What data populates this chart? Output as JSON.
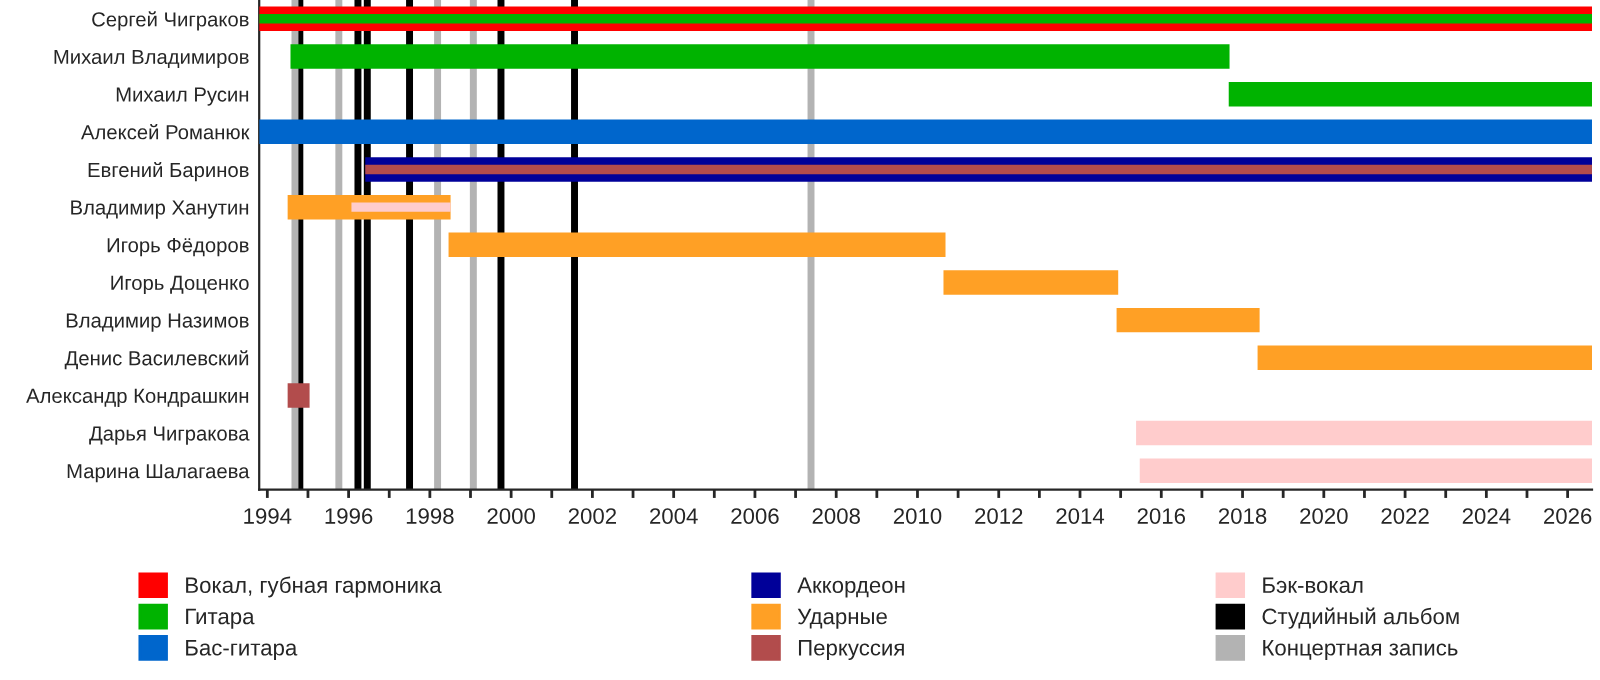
{
  "chart_data": {
    "type": "bar",
    "orientation": "horizontal",
    "categories": [
      "Сергей Чиграков",
      "Михаил Владимиров",
      "Михаил Русин",
      "Алексей Романюк",
      "Евгений Баринов",
      "Владимир Ханутин",
      "Игорь Фёдоров",
      "Игорь Доценко",
      "Владимир Назимов",
      "Денис Василевский",
      "Александр Кондрашкин",
      "Дарья Чигракова",
      "Марина Шалагаева"
    ],
    "series": [
      {
        "name": "Вокал, губная гармоника",
        "color": "#ff0000",
        "base": [
          1993.8,
          null,
          null,
          null,
          null,
          null,
          null,
          null,
          null,
          null,
          null,
          null,
          null
        ],
        "values": [
          32.8,
          null,
          null,
          null,
          null,
          null,
          null,
          null,
          null,
          null,
          null,
          null,
          null
        ]
      },
      {
        "name": "Гитара",
        "color": "#00b300",
        "base": [
          1993.8,
          1994.57,
          2017.66,
          null,
          null,
          null,
          null,
          null,
          null,
          null,
          null,
          null,
          null
        ],
        "values": [
          32.8,
          23.11,
          8.94,
          null,
          null,
          null,
          null,
          null,
          null,
          null,
          null,
          null,
          null
        ]
      },
      {
        "name": "Бас-гитара",
        "color": "#0066cc",
        "base": [
          null,
          null,
          null,
          1993.8,
          null,
          null,
          null,
          null,
          null,
          null,
          null,
          null,
          null
        ],
        "values": [
          null,
          null,
          null,
          32.8,
          null,
          null,
          null,
          null,
          null,
          null,
          null,
          null,
          null
        ]
      },
      {
        "name": "Аккордеон",
        "color": "#000099",
        "base": [
          null,
          null,
          null,
          null,
          1996.41,
          null,
          null,
          null,
          null,
          null,
          null,
          null,
          null
        ],
        "values": [
          null,
          null,
          null,
          null,
          30.19,
          null,
          null,
          null,
          null,
          null,
          null,
          null,
          null
        ]
      },
      {
        "name": "Ударные",
        "color": "#ffa025",
        "base": [
          null,
          null,
          null,
          null,
          null,
          1994.5,
          1998.46,
          2010.64,
          2014.9,
          2018.37,
          null,
          null,
          null
        ],
        "values": [
          null,
          null,
          null,
          null,
          null,
          4.01,
          12.23,
          4.3,
          3.52,
          8.23,
          null,
          null,
          null
        ]
      },
      {
        "name": "Перкуссия",
        "color": "#b24c4c",
        "base": [
          null,
          null,
          null,
          null,
          1996.41,
          null,
          null,
          null,
          null,
          null,
          1994.5,
          null,
          null
        ],
        "values": [
          null,
          null,
          null,
          null,
          30.19,
          null,
          null,
          null,
          null,
          null,
          0.54,
          null,
          null
        ]
      },
      {
        "name": "Бэк-вокал",
        "color": "#ffcccc",
        "base": [
          null,
          null,
          null,
          null,
          null,
          1996.07,
          null,
          null,
          null,
          null,
          null,
          2015.38,
          2015.47
        ],
        "values": [
          null,
          null,
          null,
          null,
          null,
          2.44,
          null,
          null,
          null,
          null,
          null,
          11.22,
          11.13
        ]
      }
    ],
    "ref_lines": [
      {
        "axis": "x",
        "value": 1994.8,
        "label": "Студийный альбом",
        "color": "#000000"
      },
      {
        "axis": "x",
        "value": 1994.68,
        "label": "Концертная запись",
        "color": "#b3b3b3"
      },
      {
        "axis": "x",
        "value": 1995.76,
        "color": "#b3b3b3"
      },
      {
        "axis": "x",
        "value": 1996.23,
        "color": "#000000"
      },
      {
        "axis": "x",
        "value": 1996.46,
        "color": "#000000"
      },
      {
        "axis": "x",
        "value": 1997.5,
        "color": "#000000"
      },
      {
        "axis": "x",
        "value": 1998.19,
        "color": "#b3b3b3"
      },
      {
        "axis": "x",
        "value": 1999.07,
        "color": "#b3b3b3"
      },
      {
        "axis": "x",
        "value": 1999.75,
        "color": "#000000"
      },
      {
        "axis": "x",
        "value": 2001.56,
        "color": "#000000"
      },
      {
        "axis": "x",
        "value": 2007.38,
        "color": "#b3b3b3"
      }
    ],
    "xlim": [
      1993.8,
      2026.6
    ],
    "xticks": [
      1994,
      {
        "value": 1995,
        "label": null
      },
      1996,
      {
        "value": 1997,
        "label": null
      },
      1998,
      {
        "value": 1999,
        "label": null
      },
      2000,
      {
        "value": 2001,
        "label": null
      },
      2002,
      {
        "value": 2003,
        "label": null
      },
      2004,
      {
        "value": 2005,
        "label": null
      },
      2006,
      {
        "value": 2007,
        "label": null
      },
      2008,
      {
        "value": 2009,
        "label": null
      },
      2010,
      {
        "value": 2011,
        "label": null
      },
      2012,
      {
        "value": 2013,
        "label": null
      },
      2014,
      {
        "value": 2015,
        "label": null
      },
      2016,
      {
        "value": 2017,
        "label": null
      },
      2018,
      {
        "value": 2019,
        "label": null
      },
      2020,
      {
        "value": 2021,
        "label": null
      },
      2022,
      {
        "value": 2023,
        "label": null
      },
      2024,
      {
        "value": 2025,
        "label": null
      },
      2026
    ],
    "grid": false,
    "legend": "bottom"
  }
}
